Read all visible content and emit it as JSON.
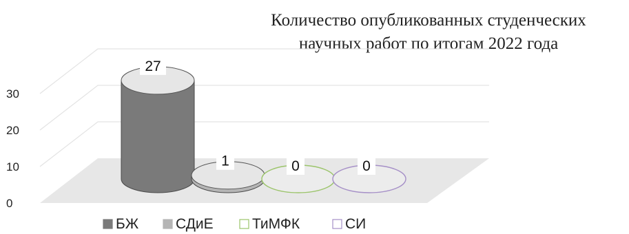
{
  "chart_data": {
    "type": "bar",
    "style": "3d-cylinder",
    "title_lines": [
      "Количество опубликованных студенческих",
      "научных работ по итогам 2022 года"
    ],
    "categories": [
      "БЖ",
      "СДиЕ",
      "ТиМФК",
      "СИ"
    ],
    "values": [
      27,
      1,
      0,
      0
    ],
    "data_labels": [
      "27",
      "1",
      "0",
      "0"
    ],
    "ylim": [
      0,
      30
    ],
    "yticks": [
      "0",
      "10",
      "20",
      "30"
    ],
    "grid": true,
    "legend": "bottom",
    "colors": {
      "БЖ": "#7a7a7a",
      "СДиЕ": "#b5b5b5",
      "ТиМФК": "#9bc46a",
      "СИ": "#a58fc7",
      "floor": "#e7e7e7",
      "gridline": "#e3e3e3"
    }
  }
}
